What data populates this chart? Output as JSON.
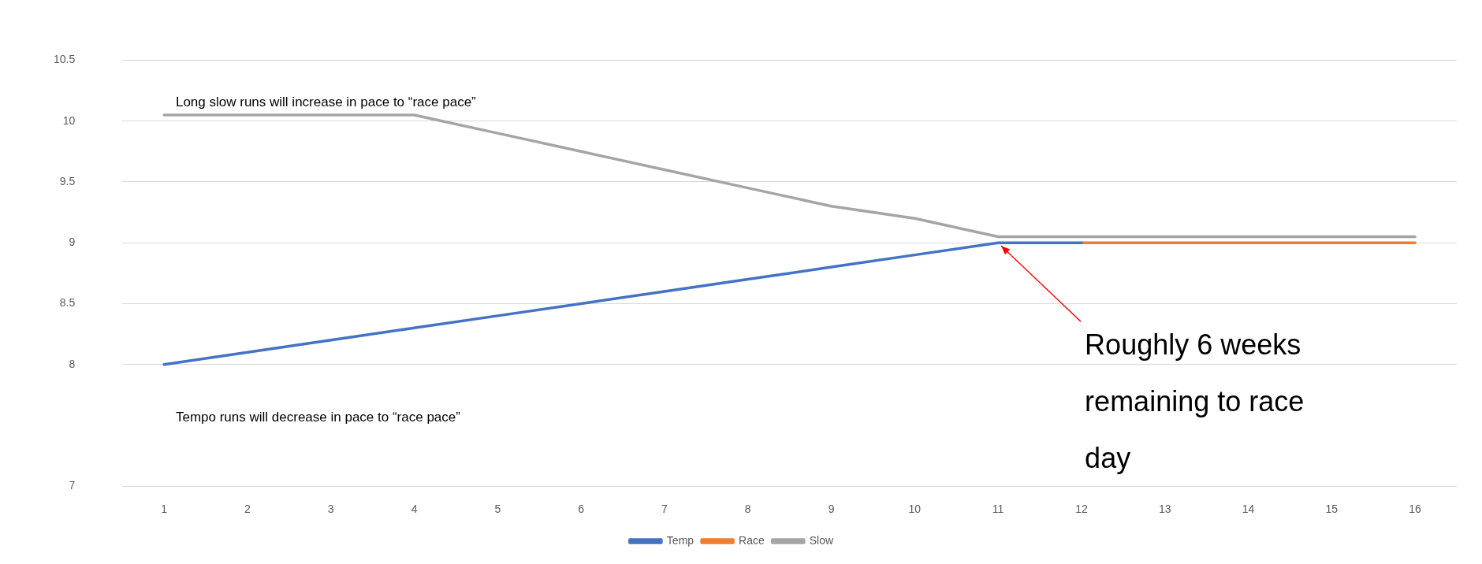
{
  "chart_data": {
    "type": "line",
    "categories": [
      "1",
      "2",
      "3",
      "4",
      "5",
      "6",
      "7",
      "8",
      "9",
      "10",
      "11",
      "12",
      "13",
      "14",
      "15",
      "16"
    ],
    "series": [
      {
        "name": "Temp",
        "color": "#4472c4",
        "values": [
          8,
          8.1,
          8.2,
          8.3,
          8.4,
          8.5,
          8.6,
          8.7,
          8.8,
          8.9,
          9,
          9,
          null,
          null,
          null,
          null
        ]
      },
      {
        "name": "Race",
        "color": "#ed7d31",
        "values": [
          null,
          null,
          null,
          null,
          null,
          null,
          null,
          null,
          null,
          null,
          null,
          9,
          9,
          9,
          9,
          9
        ]
      },
      {
        "name": "Slow",
        "color": "#a5a5a5",
        "values": [
          10.05,
          10.05,
          10.05,
          10.05,
          9.9,
          9.75,
          9.6,
          9.45,
          9.3,
          9.2,
          9.05,
          9.05,
          9.05,
          9.05,
          9.05,
          9.05
        ]
      }
    ],
    "ylim": [
      7,
      10.5
    ],
    "yticks": [
      7,
      8,
      8.5,
      9,
      9.5,
      10,
      10.5
    ],
    "grid": "y",
    "legend": "bottom",
    "marker": "none",
    "line_style": "solid",
    "annotations": [
      "Long slow runs will increase in pace to “race pace”",
      "Tempo runs will decrease in pace to “race pace”",
      {
        "text": "Roughly 6 weeks remaining to race day",
        "x": "11",
        "y": 9
      }
    ]
  }
}
